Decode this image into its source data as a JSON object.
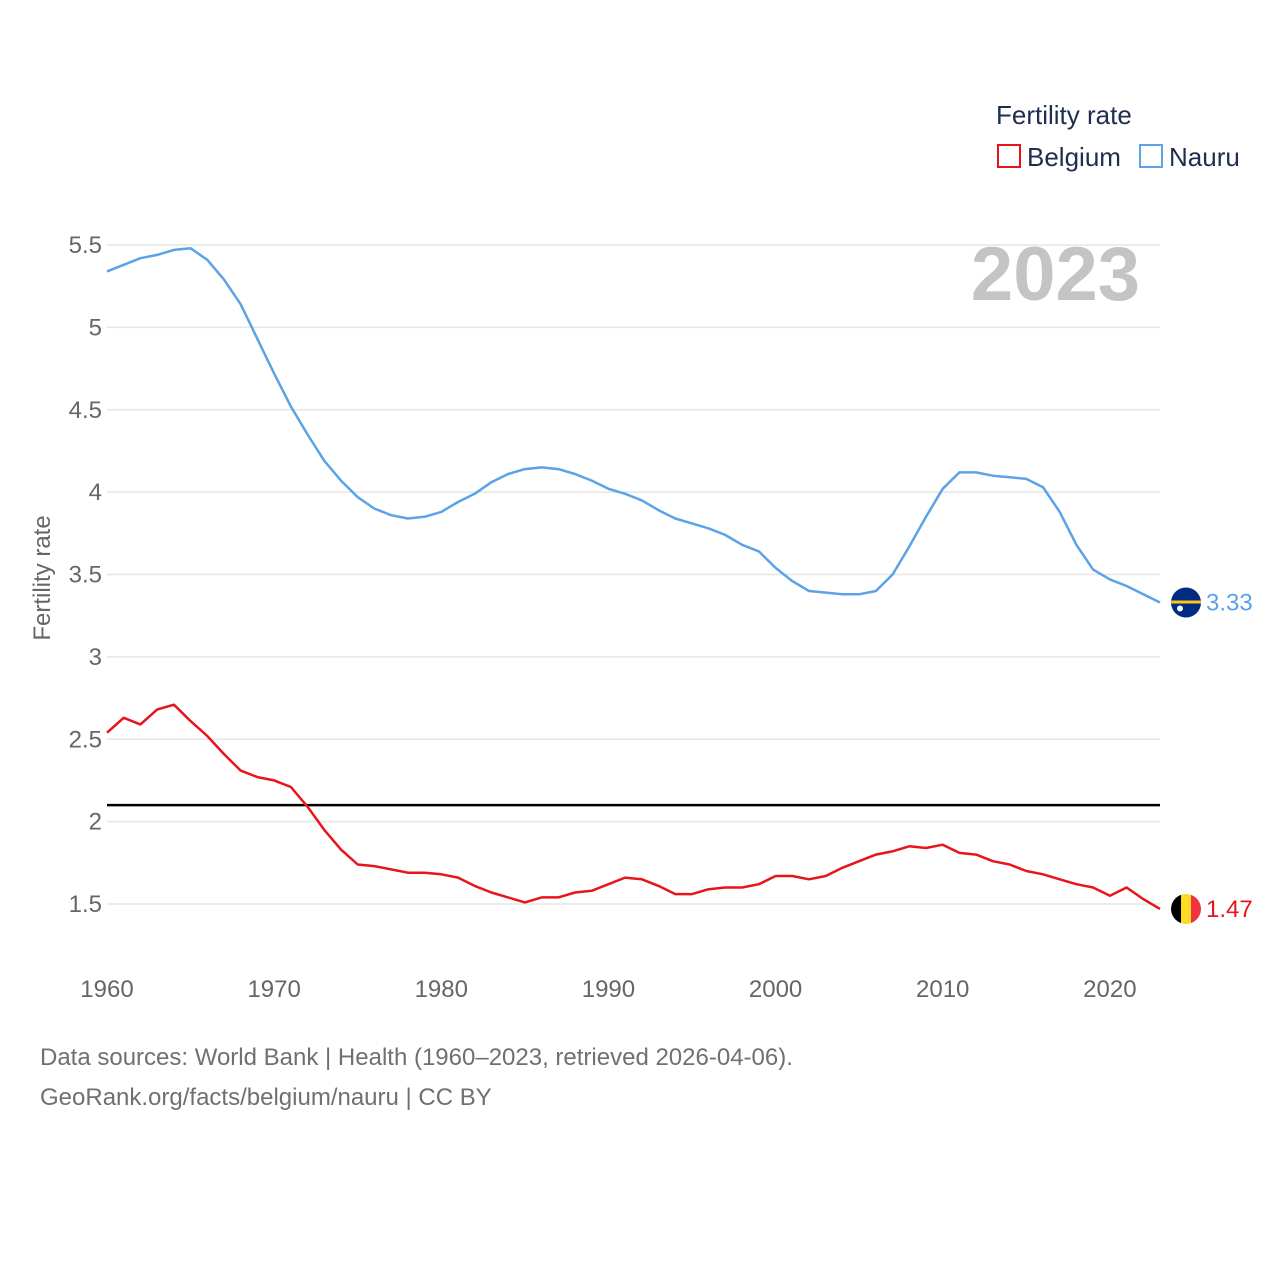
{
  "chart_data": {
    "type": "line",
    "title": "",
    "xlabel": "",
    "ylabel": "Fertility rate",
    "xlim": [
      1960,
      2023
    ],
    "ylim": [
      1.5,
      5.5
    ],
    "year_label": "2023",
    "xticks": [
      1960,
      1970,
      1980,
      1990,
      2000,
      2010,
      2020
    ],
    "yticks": [
      {
        "value": 1.5,
        "label": "1.5"
      },
      {
        "value": 2,
        "label": "2"
      },
      {
        "value": 2.5,
        "label": "2.5"
      },
      {
        "value": 3,
        "label": "3"
      },
      {
        "value": 3.5,
        "label": "3.5"
      },
      {
        "value": 4,
        "label": "4"
      },
      {
        "value": 4.5,
        "label": "4.5"
      },
      {
        "value": 5,
        "label": "5"
      },
      {
        "value": 5.5,
        "label": "5.5"
      }
    ],
    "reference_line": {
      "value": 2.1
    },
    "legend": {
      "title": "Fertility rate",
      "position": "top-right"
    },
    "series": [
      {
        "name": "Belgium",
        "color": "#e8141c",
        "end_label": "1.47",
        "flag": "belgium-flag",
        "x": [
          1960,
          1961,
          1962,
          1963,
          1964,
          1965,
          1966,
          1967,
          1968,
          1969,
          1970,
          1971,
          1972,
          1973,
          1974,
          1975,
          1976,
          1977,
          1978,
          1979,
          1980,
          1981,
          1982,
          1983,
          1984,
          1985,
          1986,
          1987,
          1988,
          1989,
          1990,
          1991,
          1992,
          1993,
          1994,
          1995,
          1996,
          1997,
          1998,
          1999,
          2000,
          2001,
          2002,
          2003,
          2004,
          2005,
          2006,
          2007,
          2008,
          2009,
          2010,
          2011,
          2012,
          2013,
          2014,
          2015,
          2016,
          2017,
          2018,
          2019,
          2020,
          2021,
          2022,
          2023
        ],
        "values": [
          2.54,
          2.63,
          2.59,
          2.68,
          2.71,
          2.61,
          2.52,
          2.41,
          2.31,
          2.27,
          2.25,
          2.21,
          2.09,
          1.95,
          1.83,
          1.74,
          1.73,
          1.71,
          1.69,
          1.69,
          1.68,
          1.66,
          1.61,
          1.57,
          1.54,
          1.51,
          1.54,
          1.54,
          1.57,
          1.58,
          1.62,
          1.66,
          1.65,
          1.61,
          1.56,
          1.56,
          1.59,
          1.6,
          1.6,
          1.62,
          1.67,
          1.67,
          1.65,
          1.67,
          1.72,
          1.76,
          1.8,
          1.82,
          1.85,
          1.84,
          1.86,
          1.81,
          1.8,
          1.76,
          1.74,
          1.7,
          1.68,
          1.65,
          1.62,
          1.6,
          1.55,
          1.6,
          1.53,
          1.47
        ]
      },
      {
        "name": "Nauru",
        "color": "#5ba3e6",
        "end_label": "3.33",
        "flag": "nauru-flag",
        "x": [
          1960,
          1961,
          1962,
          1963,
          1964,
          1965,
          1966,
          1967,
          1968,
          1969,
          1970,
          1971,
          1972,
          1973,
          1974,
          1975,
          1976,
          1977,
          1978,
          1979,
          1980,
          1981,
          1982,
          1983,
          1984,
          1985,
          1986,
          1987,
          1988,
          1989,
          1990,
          1991,
          1992,
          1993,
          1994,
          1995,
          1996,
          1997,
          1998,
          1999,
          2000,
          2001,
          2002,
          2003,
          2004,
          2005,
          2006,
          2007,
          2008,
          2009,
          2010,
          2011,
          2012,
          2013,
          2014,
          2015,
          2016,
          2017,
          2018,
          2019,
          2020,
          2021,
          2022,
          2023
        ],
        "values": [
          5.34,
          5.38,
          5.42,
          5.44,
          5.47,
          5.48,
          5.41,
          5.29,
          5.14,
          4.93,
          4.72,
          4.52,
          4.35,
          4.19,
          4.07,
          3.97,
          3.9,
          3.86,
          3.84,
          3.85,
          3.88,
          3.94,
          3.99,
          4.06,
          4.11,
          4.14,
          4.15,
          4.14,
          4.11,
          4.07,
          4.02,
          3.99,
          3.95,
          3.89,
          3.84,
          3.81,
          3.78,
          3.74,
          3.68,
          3.64,
          3.54,
          3.46,
          3.4,
          3.39,
          3.38,
          3.38,
          3.4,
          3.5,
          3.67,
          3.85,
          4.02,
          4.12,
          4.12,
          4.1,
          4.09,
          4.08,
          4.03,
          3.88,
          3.68,
          3.53,
          3.47,
          3.43,
          3.38,
          3.33
        ]
      }
    ]
  },
  "footer": {
    "sources": "Data sources: World Bank | Health (1960–2023, retrieved 2026-04-06).",
    "credit": "GeoRank.org/facts/belgium/nauru | CC BY"
  }
}
